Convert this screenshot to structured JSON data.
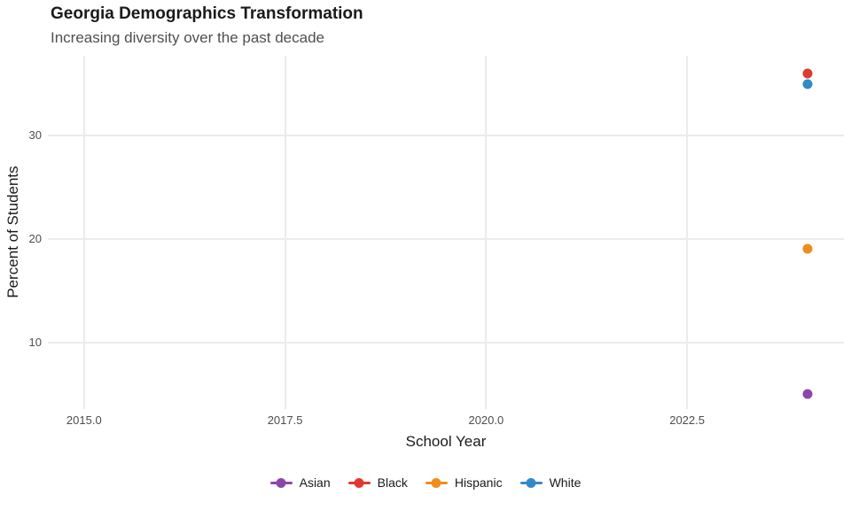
{
  "header": {
    "title": "Georgia Demographics Transformation",
    "subtitle": "Increasing diversity over the past decade"
  },
  "chart_data": {
    "type": "scatter",
    "title": "Georgia Demographics Transformation",
    "subtitle": "Increasing diversity over the past decade",
    "xlabel": "School Year",
    "ylabel": "Percent of Students",
    "x_ticks": [
      2015.0,
      2017.5,
      2020.0,
      2022.5
    ],
    "x_tick_labels": [
      "2015.0",
      "2017.5",
      "2020.0",
      "2022.5"
    ],
    "y_ticks": [
      10,
      20,
      30
    ],
    "y_tick_labels": [
      "10",
      "20",
      "30"
    ],
    "xlim": [
      2014.55,
      2024.45
    ],
    "ylim": [
      3.55,
      37.7
    ],
    "grid": "major-only",
    "legend_position": "bottom",
    "series": [
      {
        "name": "Asian",
        "color": "#8E44AD",
        "points": [
          {
            "x": 2024,
            "y": 5
          }
        ]
      },
      {
        "name": "Black",
        "color": "#E0392E",
        "points": [
          {
            "x": 2024,
            "y": 36
          }
        ]
      },
      {
        "name": "Hispanic",
        "color": "#F08C1E",
        "points": [
          {
            "x": 2024,
            "y": 19
          }
        ]
      },
      {
        "name": "White",
        "color": "#3189C9",
        "points": [
          {
            "x": 2024,
            "y": 35
          }
        ]
      }
    ]
  },
  "colors": {
    "background": "#FFFFFF",
    "gridline": "#EBEBEB",
    "title": "#1A1A1A",
    "subtitle": "#4F4F4F",
    "tick_label": "#4D4D4D",
    "axis_title": "#1A1A1A"
  }
}
